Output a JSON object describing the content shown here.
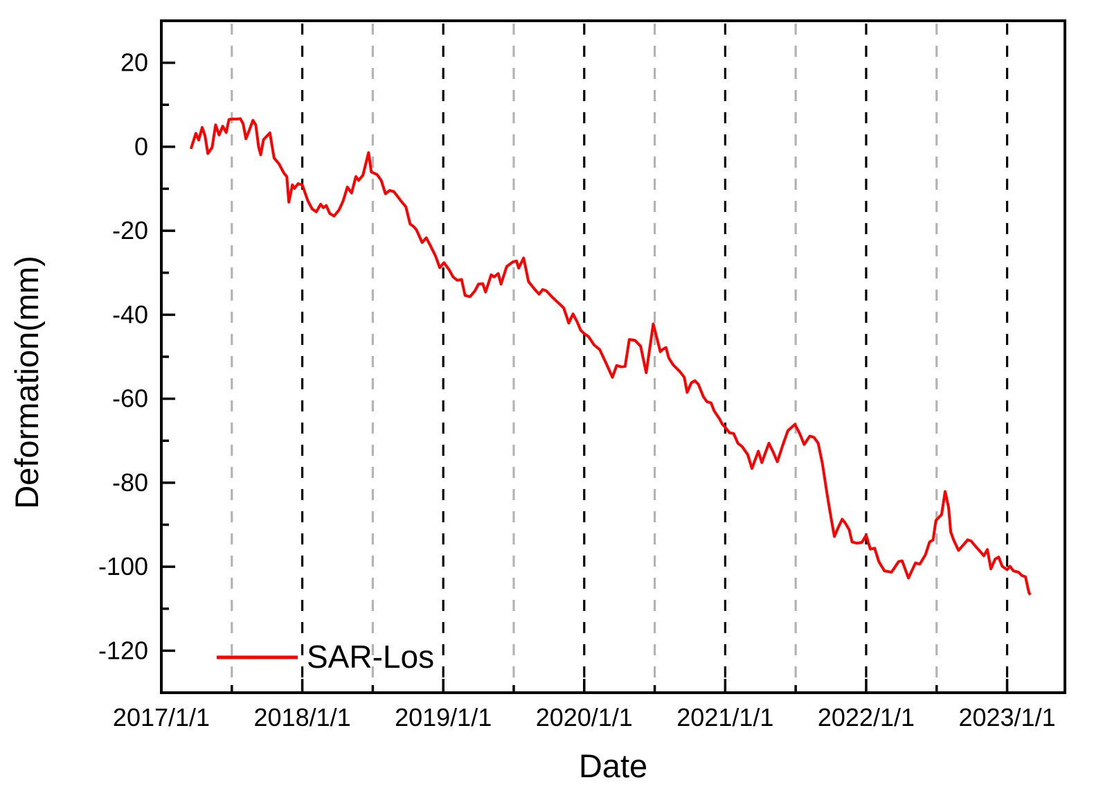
{
  "figure": {
    "background": "#ffffff",
    "legend": {
      "label": "SAR-Los",
      "swatch_color": "#ff0000"
    }
  },
  "chart_data": {
    "type": "line",
    "title": "",
    "xlabel": "Date",
    "ylabel": "Deformation(mm)",
    "xlim": [
      2017.0,
      2023.41
    ],
    "ylim": [
      -130,
      30
    ],
    "x_major_ticks": [
      2017,
      2018,
      2019,
      2020,
      2021,
      2022,
      2023
    ],
    "x_major_tick_labels": [
      "2017/1/1",
      "2018/1/1",
      "2019/1/1",
      "2020/1/1",
      "2021/1/1",
      "2022/1/1",
      "2023/1/1"
    ],
    "x_minor_ticks": [
      2017.5,
      2018.5,
      2019.5,
      2020.5,
      2021.5,
      2022.5
    ],
    "y_major_ticks": [
      20,
      0,
      -20,
      -40,
      -60,
      -80,
      -100,
      -120
    ],
    "y_major_tick_labels": [
      "20",
      "0",
      "-20",
      "-40",
      "-60",
      "-80",
      "-100",
      "-120"
    ],
    "y_minor_ticks": [
      10,
      -10,
      -30,
      -50,
      -70,
      -90,
      -110
    ],
    "grid": {
      "vertical_black_dashed_at": [
        2018,
        2019,
        2020,
        2021,
        2022,
        2023
      ],
      "vertical_gray_dashed_at": [
        2017.5,
        2018.5,
        2019.5,
        2020.5,
        2021.5,
        2022.5
      ],
      "black_color": "#000000",
      "gray_color": "#b3b3b3"
    },
    "legend_position": "bottom-left-inside",
    "series": [
      {
        "name": "SAR-Los",
        "color": "#ff0000",
        "points": [
          [
            2017.21,
            -0.5
          ],
          [
            2017.245,
            3.2
          ],
          [
            2017.265,
            1.6
          ],
          [
            2017.29,
            4.6
          ],
          [
            2017.31,
            2.6
          ],
          [
            2017.33,
            -1.6
          ],
          [
            2017.36,
            -0.2
          ],
          [
            2017.385,
            5.2
          ],
          [
            2017.41,
            2.8
          ],
          [
            2017.435,
            4.9
          ],
          [
            2017.46,
            3.4
          ],
          [
            2017.48,
            6.5
          ],
          [
            2017.505,
            6.6
          ],
          [
            2017.535,
            6.6
          ],
          [
            2017.56,
            6.7
          ],
          [
            2017.58,
            5.5
          ],
          [
            2017.6,
            1.9
          ],
          [
            2017.625,
            4.0
          ],
          [
            2017.65,
            6.3
          ],
          [
            2017.67,
            5.2
          ],
          [
            2017.69,
            0.0
          ],
          [
            2017.705,
            -1.9
          ],
          [
            2017.725,
            1.7
          ],
          [
            2017.77,
            3.3
          ],
          [
            2017.8,
            -2.7
          ],
          [
            2017.835,
            -4.1
          ],
          [
            2017.87,
            -6.3
          ],
          [
            2017.89,
            -7.1
          ],
          [
            2017.905,
            -13.2
          ],
          [
            2017.93,
            -9.1
          ],
          [
            2017.945,
            -9.9
          ],
          [
            2017.97,
            -8.8
          ],
          [
            2018.0,
            -9.1
          ],
          [
            2018.04,
            -12.9
          ],
          [
            2018.07,
            -14.8
          ],
          [
            2018.1,
            -15.5
          ],
          [
            2018.13,
            -13.7
          ],
          [
            2018.15,
            -14.5
          ],
          [
            2018.17,
            -14.0
          ],
          [
            2018.195,
            -15.9
          ],
          [
            2018.225,
            -16.5
          ],
          [
            2018.26,
            -15.1
          ],
          [
            2018.29,
            -12.9
          ],
          [
            2018.32,
            -9.6
          ],
          [
            2018.35,
            -11.0
          ],
          [
            2018.38,
            -7.1
          ],
          [
            2018.4,
            -8.0
          ],
          [
            2018.43,
            -6.8
          ],
          [
            2018.47,
            -1.4
          ],
          [
            2018.49,
            -6.0
          ],
          [
            2018.53,
            -6.6
          ],
          [
            2018.56,
            -8.0
          ],
          [
            2018.59,
            -11.2
          ],
          [
            2018.62,
            -10.4
          ],
          [
            2018.65,
            -10.7
          ],
          [
            2018.7,
            -12.9
          ],
          [
            2018.735,
            -14.3
          ],
          [
            2018.765,
            -18.4
          ],
          [
            2018.79,
            -19.0
          ],
          [
            2018.81,
            -19.8
          ],
          [
            2018.85,
            -22.8
          ],
          [
            2018.88,
            -21.7
          ],
          [
            2018.905,
            -23.3
          ],
          [
            2018.945,
            -26.0
          ],
          [
            2018.975,
            -28.8
          ],
          [
            2019.005,
            -27.6
          ],
          [
            2019.04,
            -29.2
          ],
          [
            2019.07,
            -31.0
          ],
          [
            2019.1,
            -31.8
          ],
          [
            2019.13,
            -31.6
          ],
          [
            2019.155,
            -35.4
          ],
          [
            2019.19,
            -35.7
          ],
          [
            2019.225,
            -34.3
          ],
          [
            2019.25,
            -32.7
          ],
          [
            2019.28,
            -32.6
          ],
          [
            2019.3,
            -34.6
          ],
          [
            2019.34,
            -30.5
          ],
          [
            2019.36,
            -31.0
          ],
          [
            2019.39,
            -30.2
          ],
          [
            2019.41,
            -32.7
          ],
          [
            2019.45,
            -28.5
          ],
          [
            2019.495,
            -27.4
          ],
          [
            2019.52,
            -27.2
          ],
          [
            2019.535,
            -28.9
          ],
          [
            2019.57,
            -26.5
          ],
          [
            2019.59,
            -29.7
          ],
          [
            2019.605,
            -32.1
          ],
          [
            2019.65,
            -34.0
          ],
          [
            2019.68,
            -35.1
          ],
          [
            2019.705,
            -34.0
          ],
          [
            2019.73,
            -34.3
          ],
          [
            2019.77,
            -35.7
          ],
          [
            2019.795,
            -36.5
          ],
          [
            2019.83,
            -37.6
          ],
          [
            2019.855,
            -38.4
          ],
          [
            2019.88,
            -40.9
          ],
          [
            2019.89,
            -42.0
          ],
          [
            2019.92,
            -39.8
          ],
          [
            2019.95,
            -41.7
          ],
          [
            2019.975,
            -43.7
          ],
          [
            2020.0,
            -44.5
          ],
          [
            2020.03,
            -45.2
          ],
          [
            2020.07,
            -47.2
          ],
          [
            2020.11,
            -48.3
          ],
          [
            2020.16,
            -51.9
          ],
          [
            2020.2,
            -54.9
          ],
          [
            2020.23,
            -52.1
          ],
          [
            2020.26,
            -52.4
          ],
          [
            2020.29,
            -52.3
          ],
          [
            2020.32,
            -45.9
          ],
          [
            2020.36,
            -46.1
          ],
          [
            2020.4,
            -47.5
          ],
          [
            2020.44,
            -53.8
          ],
          [
            2020.49,
            -42.2
          ],
          [
            2020.515,
            -45.5
          ],
          [
            2020.54,
            -48.8
          ],
          [
            2020.555,
            -48.3
          ],
          [
            2020.58,
            -47.8
          ],
          [
            2020.6,
            -50.3
          ],
          [
            2020.63,
            -51.9
          ],
          [
            2020.68,
            -53.6
          ],
          [
            2020.71,
            -54.9
          ],
          [
            2020.73,
            -58.5
          ],
          [
            2020.76,
            -56.2
          ],
          [
            2020.785,
            -55.7
          ],
          [
            2020.81,
            -56.6
          ],
          [
            2020.845,
            -59.5
          ],
          [
            2020.87,
            -60.7
          ],
          [
            2020.9,
            -61.0
          ],
          [
            2020.92,
            -62.8
          ],
          [
            2020.96,
            -64.8
          ],
          [
            2020.98,
            -66.1
          ],
          [
            2021.0,
            -66.8
          ],
          [
            2021.03,
            -68.1
          ],
          [
            2021.06,
            -68.3
          ],
          [
            2021.09,
            -70.6
          ],
          [
            2021.12,
            -71.4
          ],
          [
            2021.16,
            -73.3
          ],
          [
            2021.19,
            -76.6
          ],
          [
            2021.235,
            -72.5
          ],
          [
            2021.26,
            -75.2
          ],
          [
            2021.28,
            -73.3
          ],
          [
            2021.31,
            -70.6
          ],
          [
            2021.34,
            -72.7
          ],
          [
            2021.37,
            -75.0
          ],
          [
            2021.405,
            -71.4
          ],
          [
            2021.445,
            -67.6
          ],
          [
            2021.495,
            -66.1
          ],
          [
            2021.53,
            -68.4
          ],
          [
            2021.56,
            -70.9
          ],
          [
            2021.6,
            -68.9
          ],
          [
            2021.63,
            -69.2
          ],
          [
            2021.66,
            -70.6
          ],
          [
            2021.69,
            -75.5
          ],
          [
            2021.725,
            -83.2
          ],
          [
            2021.755,
            -89.2
          ],
          [
            2021.775,
            -92.8
          ],
          [
            2021.8,
            -90.8
          ],
          [
            2021.83,
            -88.7
          ],
          [
            2021.85,
            -89.5
          ],
          [
            2021.88,
            -91.2
          ],
          [
            2021.9,
            -94.1
          ],
          [
            2021.935,
            -94.4
          ],
          [
            2021.97,
            -94.2
          ],
          [
            2022.0,
            -92.5
          ],
          [
            2022.03,
            -95.8
          ],
          [
            2022.06,
            -95.6
          ],
          [
            2022.09,
            -98.8
          ],
          [
            2022.13,
            -101.0
          ],
          [
            2022.18,
            -101.3
          ],
          [
            2022.23,
            -98.8
          ],
          [
            2022.255,
            -98.6
          ],
          [
            2022.3,
            -102.7
          ],
          [
            2022.35,
            -99.1
          ],
          [
            2022.38,
            -99.4
          ],
          [
            2022.42,
            -97.2
          ],
          [
            2022.45,
            -94.1
          ],
          [
            2022.475,
            -93.6
          ],
          [
            2022.495,
            -89.0
          ],
          [
            2022.52,
            -88.1
          ],
          [
            2022.535,
            -87.6
          ],
          [
            2022.56,
            -82.1
          ],
          [
            2022.585,
            -85.9
          ],
          [
            2022.6,
            -91.7
          ],
          [
            2022.62,
            -93.6
          ],
          [
            2022.655,
            -96.1
          ],
          [
            2022.69,
            -94.8
          ],
          [
            2022.72,
            -93.6
          ],
          [
            2022.745,
            -93.9
          ],
          [
            2022.78,
            -95.3
          ],
          [
            2022.81,
            -96.4
          ],
          [
            2022.835,
            -97.4
          ],
          [
            2022.86,
            -95.9
          ],
          [
            2022.885,
            -100.5
          ],
          [
            2022.915,
            -98.2
          ],
          [
            2022.94,
            -97.7
          ],
          [
            2022.965,
            -99.9
          ],
          [
            2023.0,
            -100.7
          ],
          [
            2023.02,
            -99.9
          ],
          [
            2023.045,
            -101.0
          ],
          [
            2023.08,
            -101.3
          ],
          [
            2023.105,
            -102.1
          ],
          [
            2023.13,
            -102.4
          ],
          [
            2023.155,
            -106.2
          ],
          [
            2023.165,
            -106.7
          ]
        ]
      }
    ]
  }
}
